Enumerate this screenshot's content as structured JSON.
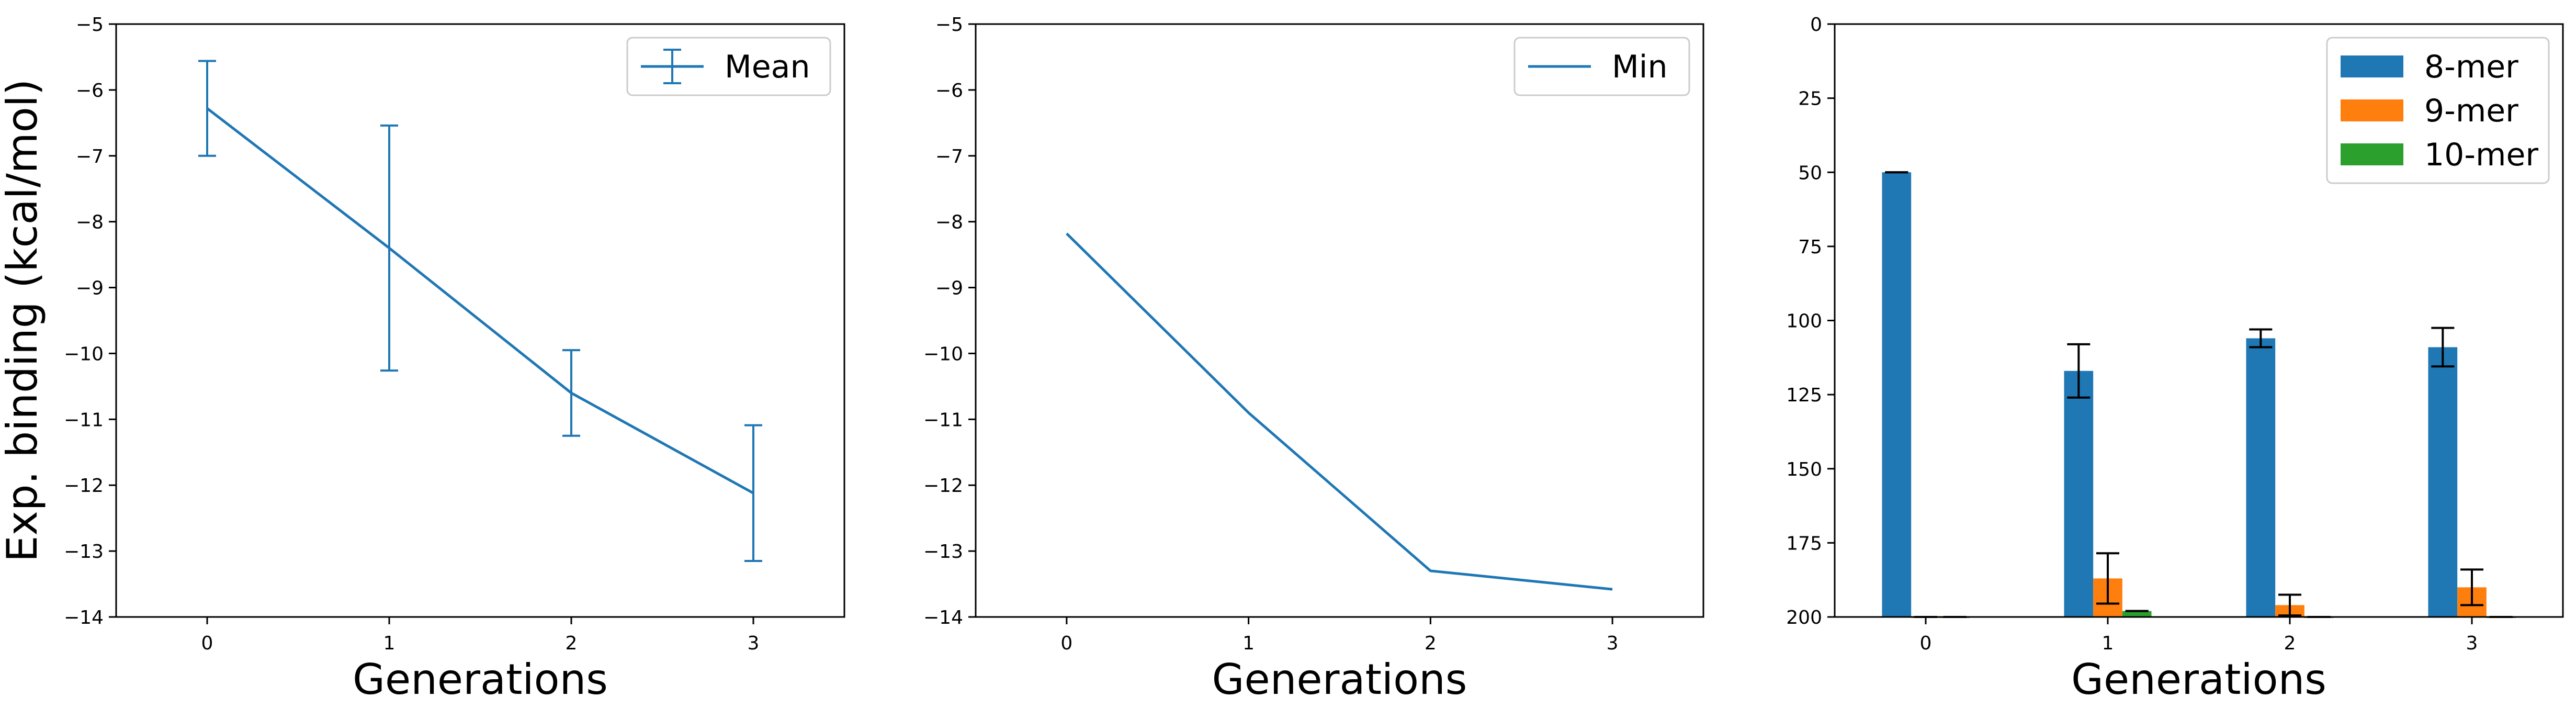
{
  "chart_data": [
    {
      "type": "line",
      "title": "",
      "xlabel": "Generations",
      "ylabel": "Exp. binding (kcal/mol)",
      "x": [
        0,
        1,
        2,
        3
      ],
      "xlim": [
        -0.5,
        3.5
      ],
      "ylim": [
        -14,
        -5
      ],
      "xticks": [
        "0",
        "1",
        "2",
        "3"
      ],
      "yticks": [
        "−5",
        "−6",
        "−7",
        "−8",
        "−9",
        "−10",
        "−11",
        "−12",
        "−13",
        "−14"
      ],
      "legend_position": "top-right",
      "series": [
        {
          "name": "Mean",
          "values": [
            -6.28,
            -8.4,
            -10.6,
            -12.12
          ],
          "error": [
            0.72,
            1.86,
            0.65,
            1.03
          ],
          "color": "#1f77b4"
        }
      ]
    },
    {
      "type": "line",
      "title": "",
      "xlabel": "Generations",
      "ylabel": "",
      "x": [
        0,
        1,
        2,
        3
      ],
      "xlim": [
        -0.5,
        3.5
      ],
      "ylim": [
        -14,
        -5
      ],
      "xticks": [
        "0",
        "1",
        "2",
        "3"
      ],
      "yticks": [
        "−5",
        "−6",
        "−7",
        "−8",
        "−9",
        "−10",
        "−11",
        "−12",
        "−13",
        "−14"
      ],
      "legend_position": "top-right",
      "series": [
        {
          "name": "Min",
          "values": [
            -8.18,
            -10.9,
            -13.3,
            -13.58
          ],
          "color": "#1f77b4"
        }
      ]
    },
    {
      "type": "bar",
      "title": "",
      "xlabel": "Generations",
      "ylabel": "",
      "categories": [
        "0",
        "1",
        "2",
        "3"
      ],
      "xlim": [
        -0.5,
        3.5
      ],
      "ylim": [
        0,
        200
      ],
      "yticks": [
        "0",
        "25",
        "50",
        "75",
        "100",
        "125",
        "150",
        "175",
        "200"
      ],
      "legend_position": "top-right",
      "series": [
        {
          "name": "8-mer",
          "values": [
            150,
            83,
            94,
            91
          ],
          "error": [
            0,
            9,
            3,
            6.5
          ],
          "color": "#1f77b4"
        },
        {
          "name": "9-mer",
          "values": [
            0,
            13,
            4,
            10
          ],
          "error": [
            0,
            8.5,
            3.5,
            6
          ],
          "color": "#ff7f0e"
        },
        {
          "name": "10-mer",
          "values": [
            0,
            2,
            0,
            0
          ],
          "error": [
            0,
            0,
            0,
            0
          ],
          "color": "#2ca02c"
        }
      ]
    }
  ]
}
